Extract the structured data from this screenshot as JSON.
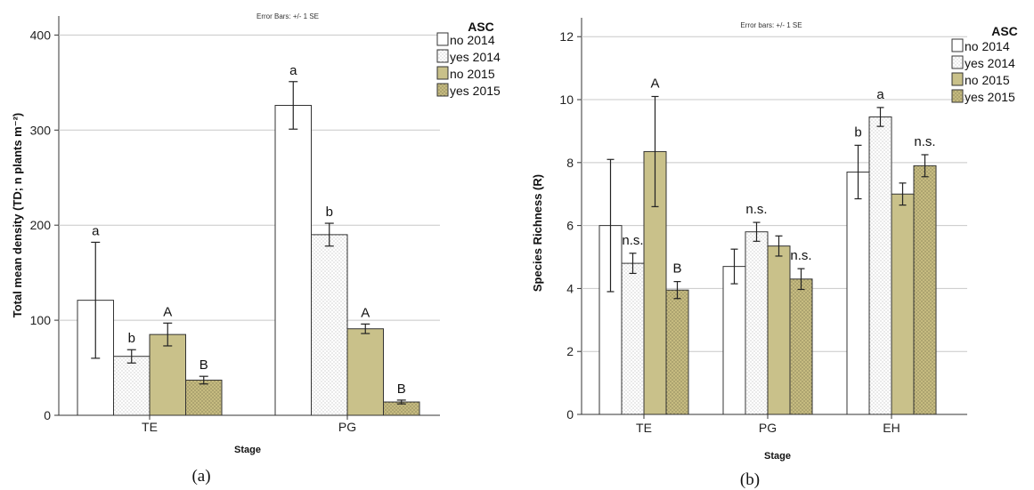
{
  "colors": {
    "no2014": "#ffffff",
    "yes2014": "#ffffff",
    "no2015": "#c9c18a",
    "yes2015": "#c6bb80",
    "dots": "#9a9a9a",
    "dots2015": "#6e6a45",
    "grid": "#c8c8c8",
    "border": "#333333"
  },
  "chart_data": [
    {
      "type": "bar",
      "caption": "(a)",
      "note": "Error Bars: +/- 1 SE",
      "xlabel": "Stage",
      "ylabel": "Total mean density (TD; n plants m⁻²)",
      "ylim": [
        0,
        420
      ],
      "yticks": [
        0,
        100,
        200,
        300,
        400
      ],
      "grid": true,
      "legend_title": "ASC",
      "legend_position": "top-right",
      "categories": [
        "TE",
        "PG"
      ],
      "series": [
        {
          "name": "no 2014",
          "pattern": "plain",
          "values": [
            121,
            326
          ],
          "errors": [
            61,
            25
          ],
          "labels": [
            "a",
            "a"
          ]
        },
        {
          "name": "yes 2014",
          "pattern": "dotted",
          "values": [
            62,
            190
          ],
          "errors": [
            7,
            12
          ],
          "labels": [
            "b",
            "b"
          ]
        },
        {
          "name": "no 2015",
          "pattern": "olive",
          "values": [
            85,
            91
          ],
          "errors": [
            12,
            5
          ],
          "labels": [
            "A",
            "A"
          ]
        },
        {
          "name": "yes 2015",
          "pattern": "olive-dotted",
          "values": [
            37,
            14
          ],
          "errors": [
            4,
            2
          ],
          "labels": [
            "B",
            "B"
          ]
        }
      ]
    },
    {
      "type": "bar",
      "caption": "(b)",
      "note": "Error bars: +/- 1 SE",
      "xlabel": "Stage",
      "ylabel": "Species Richness (R)",
      "ylim": [
        0,
        12.6
      ],
      "yticks": [
        0,
        2,
        4,
        6,
        8,
        10,
        12
      ],
      "grid": true,
      "legend_title": "ASC",
      "legend_position": "top-right",
      "categories": [
        "TE",
        "PG",
        "EH"
      ],
      "series": [
        {
          "name": "no 2014",
          "pattern": "plain",
          "values": [
            6.0,
            4.7,
            7.7
          ],
          "errors": [
            2.1,
            0.55,
            0.85
          ]
        },
        {
          "name": "yes 2014",
          "pattern": "dotted",
          "values": [
            4.8,
            5.8,
            9.45
          ],
          "errors": [
            0.32,
            0.3,
            0.3
          ]
        },
        {
          "name": "no 2015",
          "pattern": "olive",
          "values": [
            8.35,
            5.35,
            7.0
          ],
          "errors": [
            1.75,
            0.32,
            0.35
          ]
        },
        {
          "name": "yes 2015",
          "pattern": "olive-dotted",
          "values": [
            3.95,
            4.3,
            7.9
          ],
          "errors": [
            0.27,
            0.33,
            0.35
          ]
        }
      ],
      "annotations": [
        {
          "text": "n.s.",
          "category": "TE",
          "over_series": "yes 2014"
        },
        {
          "text": "A",
          "category": "TE",
          "over_series": "no 2015"
        },
        {
          "text": "B",
          "category": "TE",
          "over_series": "yes 2015"
        },
        {
          "text": "n.s.",
          "category": "PG",
          "over_series": "yes 2014"
        },
        {
          "text": "n.s.",
          "category": "PG",
          "over_series": "yes 2015"
        },
        {
          "text": "b",
          "category": "EH",
          "over_series": "no 2014"
        },
        {
          "text": "a",
          "category": "EH",
          "over_series": "yes 2014"
        },
        {
          "text": "n.s.",
          "category": "EH",
          "over_series": "yes 2015"
        }
      ]
    }
  ]
}
